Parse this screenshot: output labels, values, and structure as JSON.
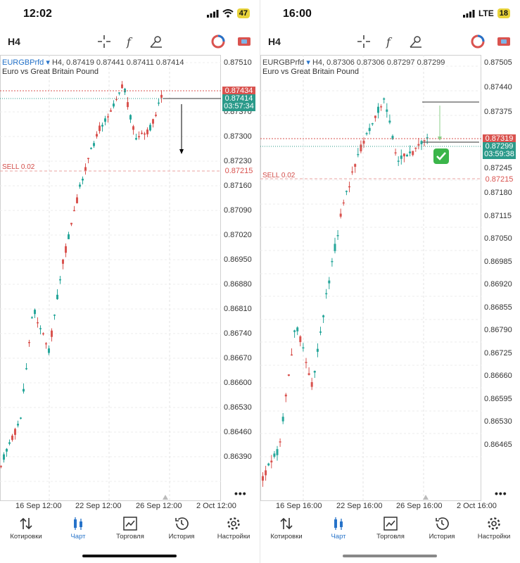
{
  "panels": [
    {
      "status": {
        "time": "12:02",
        "battery": "47",
        "network": ""
      },
      "toolbar": {
        "timeframe": "H4"
      },
      "chart": {
        "symbol": "EURGBPrfd",
        "ohlc_line": "H4, 0.87419 0.87441 0.87411 0.87414",
        "description": "Euro vs Great Britain Pound",
        "y_labels": [
          "0.87510",
          "0.87370",
          "0.87300",
          "0.87230",
          "0.87160",
          "0.87090",
          "0.87020",
          "0.86950",
          "0.86880",
          "0.86810",
          "0.86740",
          "0.86670",
          "0.86600",
          "0.86530",
          "0.86460",
          "0.86390"
        ],
        "ask_tag": "0.87434",
        "bid_tag": "0.87414",
        "timer": "03:57:34",
        "sell_label": "SELL 0.02",
        "sell_price": "0.87215",
        "x_labels": [
          "16 Sep 12:00",
          "22 Sep 12:00",
          "26 Sep 12:00",
          "2 Oct 12:00"
        ],
        "more": "•••"
      }
    },
    {
      "status": {
        "time": "16:00",
        "battery": "18",
        "network": "LTE"
      },
      "toolbar": {
        "timeframe": "H4"
      },
      "chart": {
        "symbol": "EURGBPrfd",
        "ohlc_line": "H4, 0.87306 0.87306 0.87297 0.87299",
        "description": "Euro vs Great Britain Pound",
        "y_labels": [
          "0.87505",
          "0.87440",
          "0.87375",
          "0.87180",
          "0.87115",
          "0.87050",
          "0.86985",
          "0.86920",
          "0.86855",
          "0.86790",
          "0.86725",
          "0.86660",
          "0.86595",
          "0.86530",
          "0.86465"
        ],
        "ask_tag": "0.87319",
        "bid_tag": "0.87299",
        "timer": "03:59:38",
        "sell_label": "SELL 0.02",
        "sell_price": "0.87215",
        "extra_label": "0.87245",
        "x_labels": [
          "16 Sep 16:00",
          "22 Sep 16:00",
          "26 Sep 16:00",
          "2 Oct 16:00"
        ],
        "more": "•••"
      }
    }
  ],
  "tabs": [
    {
      "label": "Котировки",
      "icon": "quotes-icon"
    },
    {
      "label": "Чарт",
      "icon": "chart-icon"
    },
    {
      "label": "Торговля",
      "icon": "trade-icon"
    },
    {
      "label": "История",
      "icon": "history-icon"
    },
    {
      "label": "Настройки",
      "icon": "settings-icon"
    }
  ],
  "colors": {
    "bull": "#26a69a",
    "bear": "#d9534f",
    "accent": "#2673c9"
  }
}
